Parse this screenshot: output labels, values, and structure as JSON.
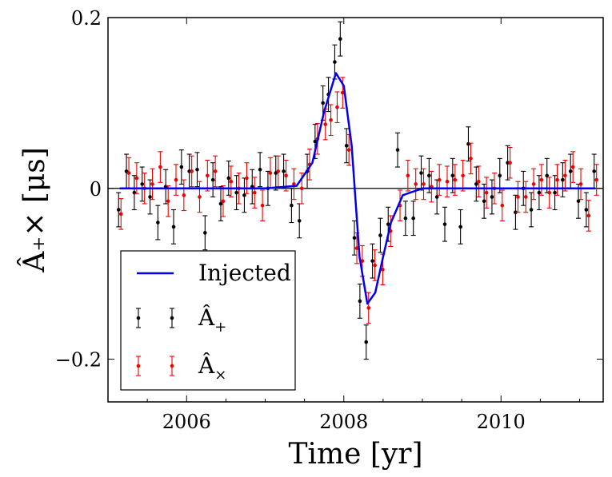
{
  "chart_data": {
    "type": "scatter",
    "xlabel": "Time [yr]",
    "ylabel": "Â₊× [μs]",
    "xlim": [
      2005.0,
      2011.3
    ],
    "ylim": [
      -0.25,
      0.2
    ],
    "xticks": [
      2006,
      2008,
      2010
    ],
    "xtick_labels": [
      "2006",
      "2008",
      "2010"
    ],
    "yticks": [
      0.2,
      0.0,
      -0.2
    ],
    "ytick_labels": [
      "0.2",
      "0",
      "−0.2"
    ],
    "zero_line": 0.0,
    "legend_position": "lower-left",
    "series": [
      {
        "name": "Injected",
        "legend_label": "Injected",
        "kind": "line",
        "color": "#0000ee",
        "x": [
          2005.15,
          2007.0,
          2007.4,
          2007.6,
          2007.75,
          2007.9,
          2008.0,
          2008.1,
          2008.2,
          2008.3,
          2008.4,
          2008.5,
          2008.6,
          2008.75,
          2009.0,
          2009.5,
          2011.2
        ],
        "y": [
          0.0,
          0.0,
          0.003,
          0.03,
          0.09,
          0.135,
          0.12,
          0.05,
          -0.08,
          -0.135,
          -0.122,
          -0.08,
          -0.04,
          -0.008,
          0.0,
          0.0,
          0.0
        ]
      },
      {
        "name": "A_plus",
        "legend_label": "Â",
        "legend_sub": "+",
        "kind": "errorbar",
        "color": "#000000",
        "err": 0.02,
        "x": [
          2005.15,
          2005.25,
          2005.35,
          2005.45,
          2005.55,
          2005.65,
          2005.75,
          2005.85,
          2005.95,
          2006.05,
          2006.15,
          2006.25,
          2006.35,
          2006.45,
          2006.55,
          2006.65,
          2006.75,
          2006.85,
          2006.95,
          2007.05,
          2007.15,
          2007.25,
          2007.35,
          2007.45,
          2007.55,
          2007.65,
          2007.75,
          2007.82,
          2007.9,
          2007.97,
          2008.05,
          2008.15,
          2008.22,
          2008.3,
          2008.38,
          2008.48,
          2008.58,
          2008.7,
          2008.8,
          2008.9,
          2009.0,
          2009.1,
          2009.2,
          2009.3,
          2009.4,
          2009.5,
          2009.6,
          2009.7,
          2009.8,
          2009.9,
          2010.0,
          2010.1,
          2010.2,
          2010.3,
          2010.4,
          2010.5,
          2010.6,
          2010.7,
          2010.8,
          2010.9,
          2011.0,
          2011.1,
          2011.2
        ],
        "y": [
          -0.025,
          0.02,
          -0.005,
          0.005,
          -0.01,
          -0.04,
          0.002,
          -0.045,
          0.025,
          0.02,
          0.022,
          -0.052,
          0.01,
          -0.018,
          0.012,
          -0.005,
          -0.008,
          0.002,
          0.022,
          0.0,
          0.018,
          0.02,
          -0.02,
          -0.038,
          0.02,
          0.055,
          0.1,
          0.11,
          0.148,
          0.175,
          0.05,
          -0.058,
          -0.132,
          -0.18,
          -0.085,
          -0.055,
          -0.042,
          0.045,
          -0.035,
          -0.035,
          0.018,
          0.015,
          -0.01,
          -0.042,
          0.015,
          -0.045,
          0.052,
          0.005,
          -0.015,
          -0.01,
          0.015,
          0.03,
          -0.028,
          0.0,
          -0.025,
          -0.005,
          0.015,
          -0.005,
          0.01,
          0.02,
          -0.015,
          -0.025,
          0.02
        ]
      },
      {
        "name": "A_cross",
        "legend_label": "Â",
        "legend_sub": "×",
        "kind": "errorbar",
        "color": "#ee0000",
        "err": 0.018,
        "x": [
          2005.15,
          2005.25,
          2005.35,
          2005.45,
          2005.55,
          2005.65,
          2005.75,
          2005.85,
          2005.95,
          2006.05,
          2006.15,
          2006.25,
          2006.35,
          2006.45,
          2006.55,
          2006.65,
          2006.75,
          2006.85,
          2006.95,
          2007.05,
          2007.15,
          2007.25,
          2007.35,
          2007.45,
          2007.55,
          2007.65,
          2007.75,
          2007.82,
          2007.9,
          2007.97,
          2008.05,
          2008.15,
          2008.22,
          2008.3,
          2008.38,
          2008.48,
          2008.58,
          2008.7,
          2008.8,
          2008.9,
          2009.0,
          2009.1,
          2009.2,
          2009.3,
          2009.4,
          2009.5,
          2009.6,
          2009.7,
          2009.8,
          2009.9,
          2010.0,
          2010.1,
          2010.2,
          2010.3,
          2010.4,
          2010.5,
          2010.6,
          2010.7,
          2010.8,
          2010.9,
          2011.0,
          2011.1,
          2011.2
        ],
        "y": [
          -0.03,
          0.018,
          0.012,
          0.0,
          0.005,
          0.025,
          -0.015,
          0.01,
          -0.008,
          0.02,
          -0.01,
          0.015,
          0.02,
          -0.015,
          0.008,
          0.0,
          0.012,
          -0.005,
          -0.02,
          0.018,
          0.02,
          0.015,
          0.005,
          0.0,
          0.028,
          0.058,
          0.075,
          0.08,
          0.095,
          0.112,
          0.045,
          -0.07,
          -0.085,
          -0.14,
          -0.09,
          -0.095,
          -0.05,
          -0.02,
          0.015,
          0.005,
          0.005,
          0.002,
          0.01,
          0.008,
          0.01,
          0.015,
          0.035,
          0.008,
          -0.005,
          0.0,
          -0.02,
          0.03,
          -0.01,
          -0.01,
          0.005,
          0.01,
          -0.005,
          0.01,
          0.015,
          0.025,
          0.005,
          -0.032,
          0.01
        ]
      }
    ]
  }
}
